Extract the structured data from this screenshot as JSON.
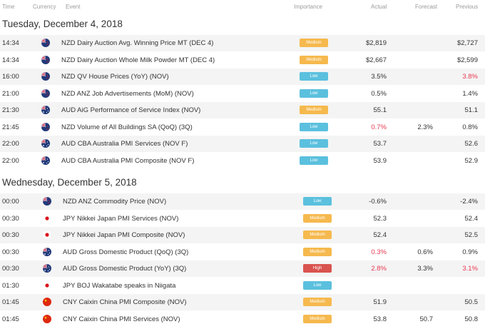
{
  "header": {
    "time": "Time",
    "currency": "Currency",
    "event": "Event",
    "importance": "Importance",
    "actual": "Actual",
    "forecast": "Forecast",
    "previous": "Previous"
  },
  "colors": {
    "medium": "#f6b94e",
    "low": "#5bc0de",
    "high": "#d9534f",
    "negative": "#e8384f"
  },
  "days": [
    {
      "title": "Tuesday, December 4, 2018",
      "rows": [
        {
          "time": "14:34",
          "flag": "nz-flag-icon",
          "event": "NZD Dairy Auction Avg. Winning Price MT (DEC 4)",
          "importance": "Medium",
          "actual": "$2,819",
          "forecast": "",
          "previous": "$2,727",
          "actual_red": false,
          "previous_red": false
        },
        {
          "time": "14:34",
          "flag": "nz-flag-icon",
          "event": "NZD Dairy Auction Whole Milk Powder MT (DEC 4)",
          "importance": "Medium",
          "actual": "$2,667",
          "forecast": "",
          "previous": "$2,599",
          "actual_red": false,
          "previous_red": false
        },
        {
          "time": "16:00",
          "flag": "nz-flag-icon",
          "event": "NZD QV House Prices (YoY) (NOV)",
          "importance": "Low",
          "actual": "3.5%",
          "forecast": "",
          "previous": "3.8%",
          "actual_red": false,
          "previous_red": true
        },
        {
          "time": "21:00",
          "flag": "nz-flag-icon",
          "event": "NZD ANZ Job Advertisements (MoM) (NOV)",
          "importance": "Low",
          "actual": "0.5%",
          "forecast": "",
          "previous": "1.4%",
          "actual_red": false,
          "previous_red": false
        },
        {
          "time": "21:30",
          "flag": "au-flag-icon",
          "event": "AUD AiG Performance of Service Index (NOV)",
          "importance": "Medium",
          "actual": "55.1",
          "forecast": "",
          "previous": "51.1",
          "actual_red": false,
          "previous_red": false
        },
        {
          "time": "21:45",
          "flag": "nz-flag-icon",
          "event": "NZD Volume of All Buildings SA (QoQ) (3Q)",
          "importance": "Low",
          "actual": "0.7%",
          "forecast": "2.3%",
          "previous": "0.8%",
          "actual_red": true,
          "previous_red": false
        },
        {
          "time": "22:00",
          "flag": "au-flag-icon",
          "event": "AUD CBA Australia PMI Services (NOV F)",
          "importance": "Low",
          "actual": "53.7",
          "forecast": "",
          "previous": "52.6",
          "actual_red": false,
          "previous_red": false
        },
        {
          "time": "22:00",
          "flag": "au-flag-icon",
          "event": "AUD CBA Australia PMI Composite (NOV F)",
          "importance": "Low",
          "actual": "53.9",
          "forecast": "",
          "previous": "52.9",
          "actual_red": false,
          "previous_red": false
        }
      ]
    },
    {
      "title": "Wednesday, December 5, 2018",
      "rows": [
        {
          "time": "00:00",
          "flag": "nz-flag-icon",
          "event": "NZD ANZ Commodity Price (NOV)",
          "importance": "Low",
          "actual": "-0.6%",
          "forecast": "",
          "previous": "-2.4%",
          "actual_red": false,
          "previous_red": false
        },
        {
          "time": "00:30",
          "flag": "jp-flag-icon",
          "event": "JPY Nikkei Japan PMI Services (NOV)",
          "importance": "Medium",
          "actual": "52.3",
          "forecast": "",
          "previous": "52.4",
          "actual_red": false,
          "previous_red": false
        },
        {
          "time": "00:30",
          "flag": "jp-flag-icon",
          "event": "JPY Nikkei Japan PMI Composite (NOV)",
          "importance": "Medium",
          "actual": "52.4",
          "forecast": "",
          "previous": "52.5",
          "actual_red": false,
          "previous_red": false
        },
        {
          "time": "00:30",
          "flag": "au-flag-icon",
          "event": "AUD Gross Domestic Product (QoQ) (3Q)",
          "importance": "Medium",
          "actual": "0.3%",
          "forecast": "0.6%",
          "previous": "0.9%",
          "actual_red": true,
          "previous_red": false
        },
        {
          "time": "00:30",
          "flag": "au-flag-icon",
          "event": "AUD Gross Domestic Product (YoY) (3Q)",
          "importance": "High",
          "actual": "2.8%",
          "forecast": "3.3%",
          "previous": "3.1%",
          "actual_red": true,
          "previous_red": true
        },
        {
          "time": "01:30",
          "flag": "jp-flag-icon",
          "event": "JPY BOJ Wakatabe speaks in Niigata",
          "importance": "Low",
          "actual": "",
          "forecast": "",
          "previous": "",
          "actual_red": false,
          "previous_red": false
        },
        {
          "time": "01:45",
          "flag": "cn-flag-icon",
          "event": "CNY Caixin China PMI Composite (NOV)",
          "importance": "Medium",
          "actual": "51.9",
          "forecast": "",
          "previous": "50.5",
          "actual_red": false,
          "previous_red": false
        },
        {
          "time": "01:45",
          "flag": "cn-flag-icon",
          "event": "CNY Caixin China PMI Services (NOV)",
          "importance": "Medium",
          "actual": "53.8",
          "forecast": "50.7",
          "previous": "50.8",
          "actual_red": false,
          "previous_red": false
        }
      ]
    }
  ]
}
